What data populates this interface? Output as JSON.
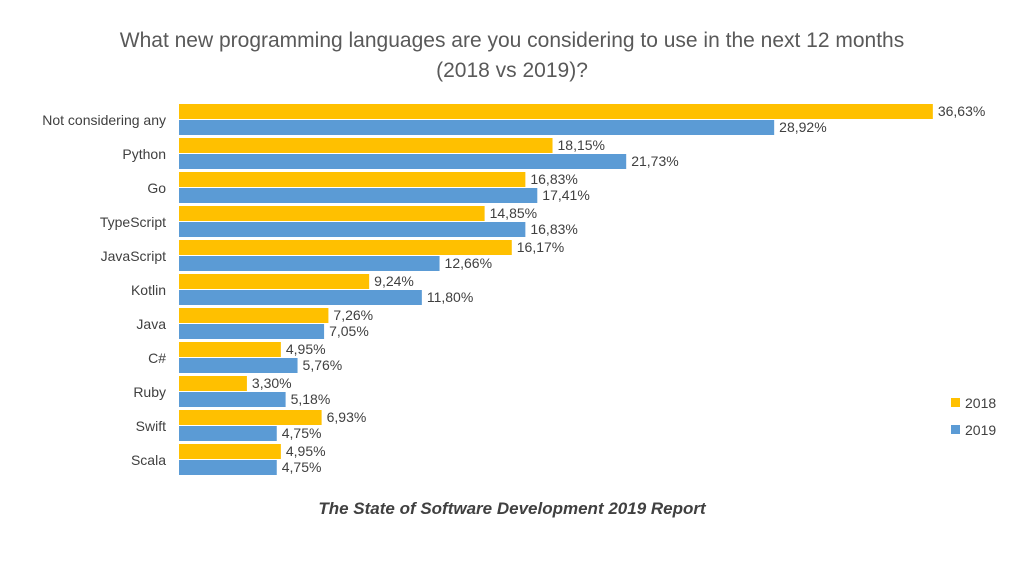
{
  "chart_data": {
    "type": "bar",
    "orientation": "horizontal",
    "title": [
      "What new programming languages are you considering to use in the next 12 months",
      "(2018 vs 2019)?"
    ],
    "categories": [
      "Not considering any",
      "Python",
      "Go",
      "TypeScript",
      "JavaScript",
      "Kotlin",
      "Java",
      "C#",
      "Ruby",
      "Swift",
      "Scala"
    ],
    "series": [
      {
        "name": "2018",
        "color": "#FFC000",
        "values": [
          36.63,
          18.15,
          16.83,
          14.85,
          16.17,
          9.24,
          7.26,
          4.95,
          3.3,
          6.93,
          4.95
        ]
      },
      {
        "name": "2019",
        "color": "#5B9BD5",
        "values": [
          28.92,
          21.73,
          17.41,
          16.83,
          12.66,
          11.8,
          7.05,
          5.76,
          5.18,
          4.75,
          4.75
        ]
      }
    ],
    "value_format": "comma-decimal-percent",
    "xlim": [
      0,
      37
    ],
    "grid": false,
    "legend_position": "right"
  },
  "footer": "The State of Software Development 2019 Report"
}
